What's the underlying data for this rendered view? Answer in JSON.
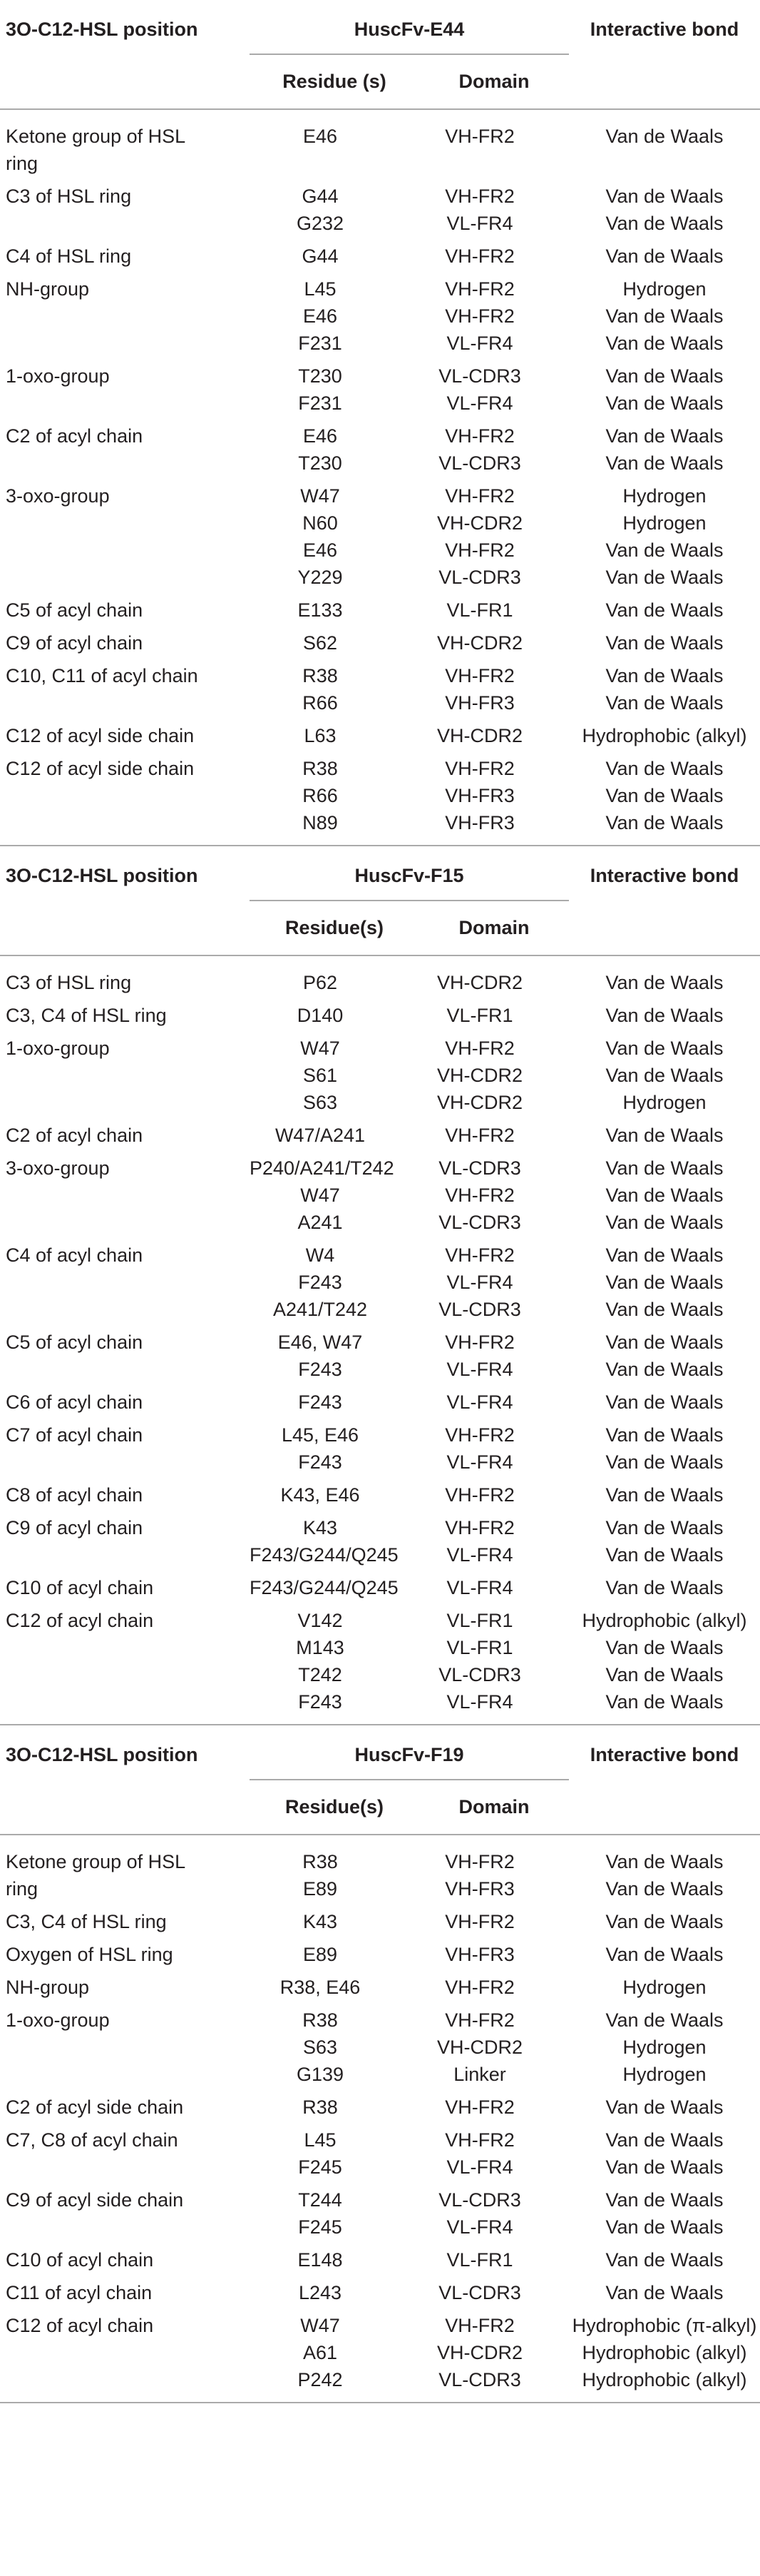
{
  "sections": [
    {
      "header": {
        "position": "3O-C12-HSL position",
        "antibody": "HuscFv-E44",
        "bond": "Interactive bond",
        "residue": "Residue (s)",
        "domain": "Domain"
      },
      "rows": [
        {
          "position": "Ketone group of HSL ring",
          "entries": [
            {
              "residue": "E46",
              "domain": "VH-FR2",
              "bond": "Van de Waals"
            }
          ]
        },
        {
          "position": "C3 of HSL ring",
          "entries": [
            {
              "residue": "G44",
              "domain": "VH-FR2",
              "bond": "Van de Waals"
            },
            {
              "residue": "G232",
              "domain": "VL-FR4",
              "bond": "Van de Waals"
            }
          ]
        },
        {
          "position": "C4 of HSL ring",
          "entries": [
            {
              "residue": "G44",
              "domain": "VH-FR2",
              "bond": "Van de Waals"
            }
          ]
        },
        {
          "position": "NH-group",
          "entries": [
            {
              "residue": "L45",
              "domain": "VH-FR2",
              "bond": "Hydrogen"
            },
            {
              "residue": "E46",
              "domain": "VH-FR2",
              "bond": "Van de Waals"
            },
            {
              "residue": "F231",
              "domain": "VL-FR4",
              "bond": "Van de Waals"
            }
          ]
        },
        {
          "position": "1-oxo-group",
          "entries": [
            {
              "residue": "T230",
              "domain": "VL-CDR3",
              "bond": "Van de Waals"
            },
            {
              "residue": "F231",
              "domain": "VL-FR4",
              "bond": "Van de Waals"
            }
          ]
        },
        {
          "position": "C2 of acyl chain",
          "entries": [
            {
              "residue": "E46",
              "domain": "VH-FR2",
              "bond": "Van de Waals"
            },
            {
              "residue": "T230",
              "domain": "VL-CDR3",
              "bond": "Van de Waals"
            }
          ]
        },
        {
          "position": "3-oxo-group",
          "entries": [
            {
              "residue": "W47",
              "domain": "VH-FR2",
              "bond": "Hydrogen"
            },
            {
              "residue": "N60",
              "domain": "VH-CDR2",
              "bond": "Hydrogen"
            },
            {
              "residue": "E46",
              "domain": "VH-FR2",
              "bond": "Van de Waals"
            },
            {
              "residue": "Y229",
              "domain": "VL-CDR3",
              "bond": "Van de Waals"
            }
          ]
        },
        {
          "position": "C5 of acyl chain",
          "entries": [
            {
              "residue": "E133",
              "domain": "VL-FR1",
              "bond": "Van de Waals"
            }
          ]
        },
        {
          "position": "C9 of acyl chain",
          "entries": [
            {
              "residue": "S62",
              "domain": "VH-CDR2",
              "bond": "Van de Waals"
            }
          ]
        },
        {
          "position": "C10, C11 of acyl chain",
          "entries": [
            {
              "residue": "R38",
              "domain": "VH-FR2",
              "bond": "Van de Waals"
            },
            {
              "residue": "R66",
              "domain": "VH-FR3",
              "bond": "Van de Waals"
            }
          ]
        },
        {
          "position": "C12 of acyl side chain",
          "entries": [
            {
              "residue": "L63",
              "domain": "VH-CDR2",
              "bond": "Hydrophobic (alkyl)"
            }
          ]
        },
        {
          "position": "C12 of acyl side chain",
          "entries": [
            {
              "residue": "R38",
              "domain": "VH-FR2",
              "bond": "Van de Waals"
            },
            {
              "residue": "R66",
              "domain": "VH-FR3",
              "bond": "Van de Waals"
            },
            {
              "residue": "N89",
              "domain": "VH-FR3",
              "bond": "Van de Waals"
            }
          ]
        }
      ]
    },
    {
      "header": {
        "position": "3O-C12-HSL position",
        "antibody": "HuscFv-F15",
        "bond": "Interactive bond",
        "residue": "Residue(s)",
        "domain": "Domain"
      },
      "rows": [
        {
          "position": "C3 of HSL ring",
          "entries": [
            {
              "residue": "P62",
              "domain": "VH-CDR2",
              "bond": "Van de Waals"
            }
          ]
        },
        {
          "position": "C3, C4 of HSL ring",
          "entries": [
            {
              "residue": "D140",
              "domain": "VL-FR1",
              "bond": "Van de Waals"
            }
          ]
        },
        {
          "position": "1-oxo-group",
          "entries": [
            {
              "residue": "W47",
              "domain": "VH-FR2",
              "bond": "Van de Waals"
            },
            {
              "residue": "S61",
              "domain": "VH-CDR2",
              "bond": "Van de Waals"
            },
            {
              "residue": "S63",
              "domain": "VH-CDR2",
              "bond": "Hydrogen"
            }
          ]
        },
        {
          "position": "C2 of acyl chain",
          "entries": [
            {
              "residue": "W47/A241",
              "domain": "VH-FR2",
              "bond": "Van de Waals"
            }
          ]
        },
        {
          "position": "3-oxo-group",
          "entries": [
            {
              "residue": "P240/A241/T242",
              "domain": "VL-CDR3",
              "bond": "Van de Waals"
            },
            {
              "residue": "W47",
              "domain": "VH-FR2",
              "bond": "Van de Waals"
            },
            {
              "residue": "A241",
              "domain": "VL-CDR3",
              "bond": "Van de Waals"
            }
          ]
        },
        {
          "position": "C4 of acyl chain",
          "entries": [
            {
              "residue": "W4",
              "domain": "VH-FR2",
              "bond": "Van de Waals"
            },
            {
              "residue": "F243",
              "domain": "VL-FR4",
              "bond": "Van de Waals"
            },
            {
              "residue": "A241/T242",
              "domain": "VL-CDR3",
              "bond": "Van de Waals"
            }
          ]
        },
        {
          "position": "C5 of acyl chain",
          "entries": [
            {
              "residue": "E46, W47",
              "domain": "VH-FR2",
              "bond": "Van de Waals"
            },
            {
              "residue": "F243",
              "domain": "VL-FR4",
              "bond": "Van de Waals"
            }
          ]
        },
        {
          "position": "C6 of acyl chain",
          "entries": [
            {
              "residue": "F243",
              "domain": "VL-FR4",
              "bond": "Van de Waals"
            }
          ]
        },
        {
          "position": "C7 of acyl chain",
          "entries": [
            {
              "residue": "L45, E46",
              "domain": "VH-FR2",
              "bond": "Van de Waals"
            },
            {
              "residue": "F243",
              "domain": "VL-FR4",
              "bond": "Van de Waals"
            }
          ]
        },
        {
          "position": "C8 of acyl chain",
          "entries": [
            {
              "residue": "K43, E46",
              "domain": "VH-FR2",
              "bond": "Van de Waals"
            }
          ]
        },
        {
          "position": "C9 of acyl chain",
          "entries": [
            {
              "residue": "K43",
              "domain": "VH-FR2",
              "bond": "Van de Waals"
            },
            {
              "residue": "F243/G244/Q245",
              "domain": "VL-FR4",
              "bond": "Van de Waals"
            }
          ]
        },
        {
          "position": "C10 of acyl chain",
          "entries": [
            {
              "residue": "F243/G244/Q245",
              "domain": "VL-FR4",
              "bond": "Van de Waals"
            }
          ]
        },
        {
          "position": "C12 of acyl chain",
          "entries": [
            {
              "residue": "V142",
              "domain": "VL-FR1",
              "bond": "Hydrophobic (alkyl)"
            },
            {
              "residue": "M143",
              "domain": "VL-FR1",
              "bond": "Van de Waals"
            },
            {
              "residue": "T242",
              "domain": "VL-CDR3",
              "bond": "Van de Waals"
            },
            {
              "residue": "F243",
              "domain": "VL-FR4",
              "bond": "Van de Waals"
            }
          ]
        }
      ]
    },
    {
      "header": {
        "position": "3O-C12-HSL position",
        "antibody": "HuscFv-F19",
        "bond": "Interactive bond",
        "residue": "Residue(s)",
        "domain": "Domain"
      },
      "rows": [
        {
          "position": "Ketone group of HSL ring",
          "entries": [
            {
              "residue": "R38",
              "domain": "VH-FR2",
              "bond": "Van de Waals"
            },
            {
              "residue": "E89",
              "domain": "VH-FR3",
              "bond": "Van de Waals"
            }
          ]
        },
        {
          "position": "C3, C4 of HSL ring",
          "entries": [
            {
              "residue": "K43",
              "domain": "VH-FR2",
              "bond": "Van de Waals"
            }
          ]
        },
        {
          "position": "Oxygen of HSL ring",
          "entries": [
            {
              "residue": "E89",
              "domain": "VH-FR3",
              "bond": "Van de Waals"
            }
          ]
        },
        {
          "position": "NH-group",
          "entries": [
            {
              "residue": "R38, E46",
              "domain": "VH-FR2",
              "bond": "Hydrogen"
            }
          ]
        },
        {
          "position": "1-oxo-group",
          "entries": [
            {
              "residue": "R38",
              "domain": "VH-FR2",
              "bond": "Van de Waals"
            },
            {
              "residue": "S63",
              "domain": "VH-CDR2",
              "bond": "Hydrogen"
            },
            {
              "residue": "G139",
              "domain": "Linker",
              "bond": "Hydrogen"
            }
          ]
        },
        {
          "position": "C2 of acyl side chain",
          "entries": [
            {
              "residue": "R38",
              "domain": "VH-FR2",
              "bond": "Van de Waals"
            }
          ]
        },
        {
          "position": "C7, C8 of acyl chain",
          "entries": [
            {
              "residue": "L45",
              "domain": "VH-FR2",
              "bond": "Van de Waals"
            },
            {
              "residue": "F245",
              "domain": "VL-FR4",
              "bond": "Van de Waals"
            }
          ]
        },
        {
          "position": "C9 of acyl side chain",
          "entries": [
            {
              "residue": "T244",
              "domain": "VL-CDR3",
              "bond": "Van de Waals"
            },
            {
              "residue": "F245",
              "domain": "VL-FR4",
              "bond": "Van de Waals"
            }
          ]
        },
        {
          "position": "C10 of acyl chain",
          "entries": [
            {
              "residue": "E148",
              "domain": "VL-FR1",
              "bond": "Van de Waals"
            }
          ]
        },
        {
          "position": "C11 of acyl chain",
          "entries": [
            {
              "residue": "L243",
              "domain": "VL-CDR3",
              "bond": "Van de Waals"
            }
          ]
        },
        {
          "position": "C12 of acyl chain",
          "entries": [
            {
              "residue": "W47",
              "domain": "VH-FR2",
              "bond": "Hydrophobic (π-alkyl)"
            },
            {
              "residue": "A61",
              "domain": "VH-CDR2",
              "bond": "Hydrophobic (alkyl)"
            },
            {
              "residue": "P242",
              "domain": "VL-CDR3",
              "bond": "Hydrophobic (alkyl)"
            }
          ]
        }
      ]
    }
  ]
}
